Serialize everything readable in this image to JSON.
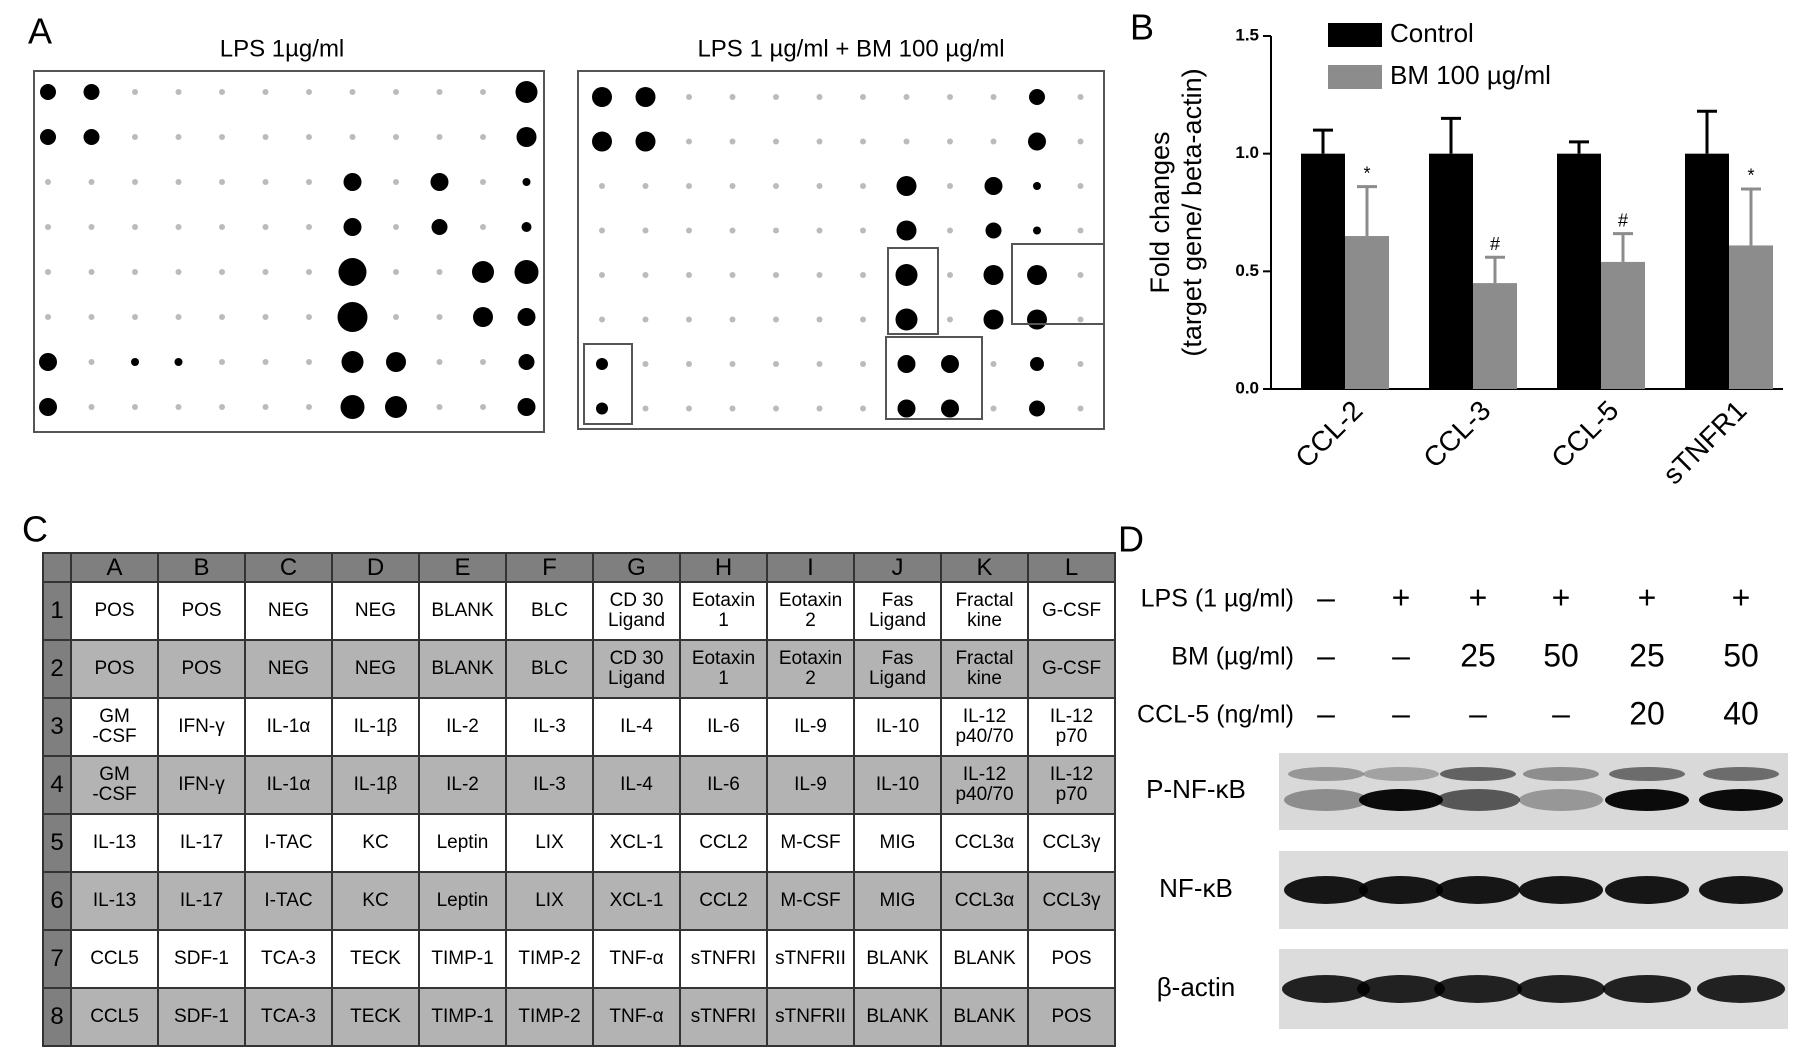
{
  "panel_a": {
    "label": "A",
    "left_title": "LPS  1µg/ml",
    "right_title": "LPS 1 µg/ml + BM 100 µg/ml"
  },
  "chart_data": {
    "type": "bar",
    "label": "B",
    "ylabel": [
      "Fold changes",
      "(target gene/ beta-actin)"
    ],
    "categories": [
      "CCL-2",
      "CCL-3",
      "CCL-5",
      "sTNFR1"
    ],
    "series": [
      {
        "name": "Control",
        "color": "#000000",
        "values": [
          1.0,
          1.0,
          1.0,
          1.0
        ],
        "errors": [
          0.1,
          0.15,
          0.05,
          0.18
        ]
      },
      {
        "name": "BM 100 µg/ml",
        "color": "#8c8c8c",
        "values": [
          0.65,
          0.45,
          0.54,
          0.61
        ],
        "errors": [
          0.21,
          0.11,
          0.12,
          0.24
        ],
        "significance": [
          "*",
          "#",
          "#",
          "*"
        ]
      }
    ],
    "ylim": [
      0,
      1.5
    ],
    "yticks": [
      {
        "value": 0,
        "label": "0.0"
      },
      {
        "value": 0.5,
        "label": "0.5"
      },
      {
        "value": 1,
        "label": "1.0"
      },
      {
        "value": 1.5,
        "label": "1.5"
      }
    ],
    "grid": false,
    "legend": "top-left"
  },
  "panel_c": {
    "label": "C",
    "columns": [
      "A",
      "B",
      "C",
      "D",
      "E",
      "F",
      "G",
      "H",
      "I",
      "J",
      "K",
      "L"
    ],
    "rows": [
      {
        "label": "1",
        "cells": [
          "POS",
          "POS",
          "NEG",
          "NEG",
          "BLANK",
          "BLC",
          "CD 30\nLigand",
          "Eotaxin\n1",
          "Eotaxin\n2",
          "Fas\nLigand",
          "Fractal\nkine",
          "G-CSF"
        ]
      },
      {
        "label": "2",
        "cells": [
          "POS",
          "POS",
          "NEG",
          "NEG",
          "BLANK",
          "BLC",
          "CD 30\nLigand",
          "Eotaxin\n1",
          "Eotaxin\n2",
          "Fas\nLigand",
          "Fractal\nkine",
          "G-CSF"
        ]
      },
      {
        "label": "3",
        "cells": [
          "GM\n-CSF",
          "IFN-γ",
          "IL-1α",
          "IL-1β",
          "IL-2",
          "IL-3",
          "IL-4",
          "IL-6",
          "IL-9",
          "IL-10",
          "IL-12\np40/70",
          "IL-12\np70"
        ]
      },
      {
        "label": "4",
        "cells": [
          "GM\n-CSF",
          "IFN-γ",
          "IL-1α",
          "IL-1β",
          "IL-2",
          "IL-3",
          "IL-4",
          "IL-6",
          "IL-9",
          "IL-10",
          "IL-12\np40/70",
          "IL-12\np70"
        ]
      },
      {
        "label": "5",
        "cells": [
          "IL-13",
          "IL-17",
          "I-TAC",
          "KC",
          "Leptin",
          "LIX",
          "XCL-1",
          "CCL2",
          "M-CSF",
          "MIG",
          "CCL3α",
          "CCL3γ"
        ]
      },
      {
        "label": "6",
        "cells": [
          "IL-13",
          "IL-17",
          "I-TAC",
          "KC",
          "Leptin",
          "LIX",
          "XCL-1",
          "CCL2",
          "M-CSF",
          "MIG",
          "CCL3α",
          "CCL3γ"
        ]
      },
      {
        "label": "7",
        "cells": [
          "CCL5",
          "SDF-1",
          "TCA-3",
          "TECK",
          "TIMP-1",
          "TIMP-2",
          "TNF-α",
          "sTNFRI",
          "sTNFRII",
          "BLANK",
          "BLANK",
          "POS"
        ]
      },
      {
        "label": "8",
        "cells": [
          "CCL5",
          "SDF-1",
          "TCA-3",
          "TECK",
          "TIMP-1",
          "TIMP-2",
          "TNF-α",
          "sTNFRI",
          "sTNFRII",
          "BLANK",
          "BLANK",
          "POS"
        ]
      }
    ]
  },
  "panel_d": {
    "label": "D",
    "conditions": [
      {
        "name": "LPS (1 µg/ml)",
        "lanes": [
          "–",
          "+",
          "+",
          "+",
          "+",
          "+"
        ]
      },
      {
        "name": "BM (µg/ml)",
        "lanes": [
          "–",
          "–",
          "25",
          "50",
          "25",
          "50"
        ]
      },
      {
        "name": "CCL-5  (ng/ml)",
        "lanes": [
          "–",
          "–",
          "–",
          "–",
          "20",
          "40"
        ]
      }
    ],
    "blots": [
      "P-NF-κB",
      "NF-κB",
      "β-actin"
    ]
  }
}
